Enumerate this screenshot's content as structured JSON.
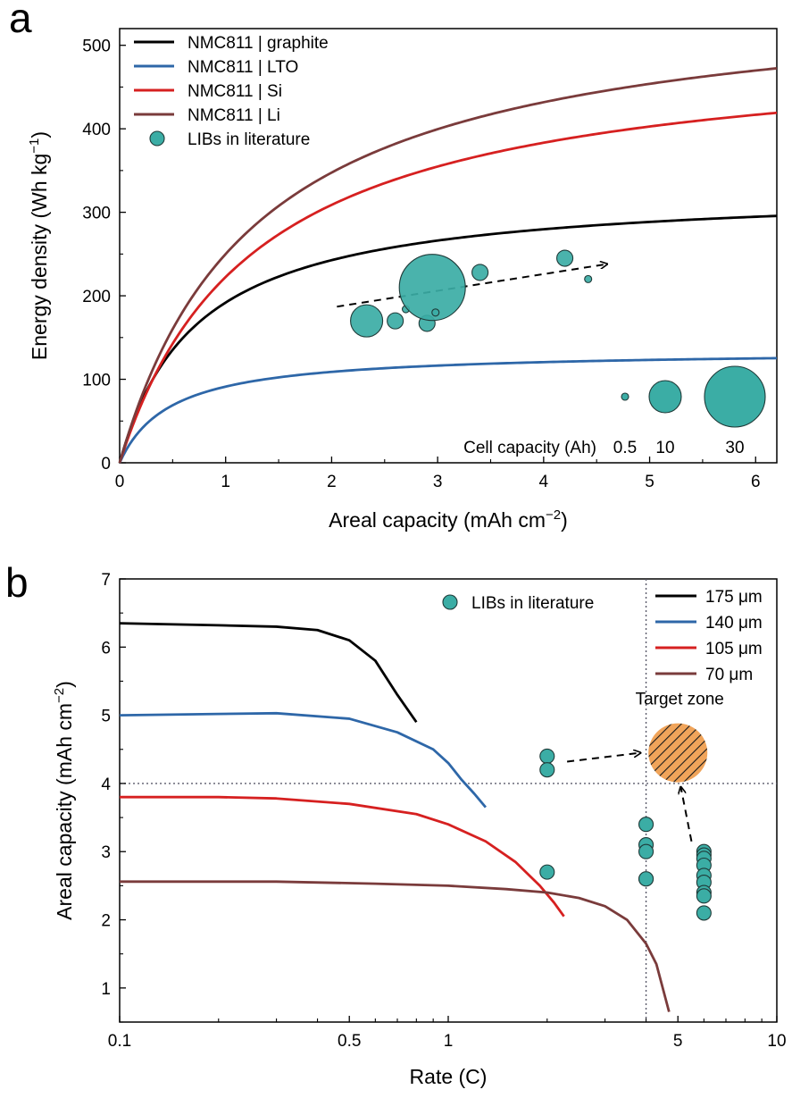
{
  "chart_data": [
    {
      "panel": "a",
      "type": "line",
      "xlabel": "Areal capacity (mAh cm",
      "xlabel_sup": "−2",
      "xlabel_end": ")",
      "ylabel": "Energy density (Wh kg",
      "ylabel_sup": "−1",
      "ylabel_end": ")",
      "xlim": [
        0,
        6.2
      ],
      "ylim": [
        0,
        520
      ],
      "xticks": [
        "0",
        "1",
        "2",
        "3",
        "4",
        "5",
        "6"
      ],
      "yticks": [
        "0",
        "100",
        "200",
        "300",
        "400",
        "500"
      ],
      "grid": false,
      "legend_position": "top-left",
      "series": [
        {
          "name": "NMC811 | graphite",
          "color": "#000000",
          "emax": 330,
          "k": 0.72
        },
        {
          "name": "NMC811 | LTO",
          "color": "#2e67a8",
          "emax": 135,
          "k": 0.48
        },
        {
          "name": "NMC811 | Si",
          "color": "#d62020",
          "emax": 505,
          "k": 1.27
        },
        {
          "name": "NMC811 | Li",
          "color": "#7a3b3b",
          "emax": 570,
          "k": 1.28
        }
      ],
      "scatter": {
        "name": "LIBs in literature",
        "color": "#3bada5",
        "points": [
          {
            "x": 2.33,
            "y": 170,
            "size": "medium"
          },
          {
            "x": 2.6,
            "y": 170,
            "size": "small"
          },
          {
            "x": 2.7,
            "y": 184,
            "size": "tiny"
          },
          {
            "x": 2.9,
            "y": 167,
            "size": "small"
          },
          {
            "x": 2.95,
            "y": 210,
            "size": "large"
          },
          {
            "x": 2.98,
            "y": 180,
            "size": "tiny"
          },
          {
            "x": 3.4,
            "y": 228,
            "size": "small"
          },
          {
            "x": 4.2,
            "y": 245,
            "size": "small"
          },
          {
            "x": 4.42,
            "y": 220,
            "size": "tiny"
          }
        ]
      },
      "trend_arrow": {
        "from": [
          2.05,
          187
        ],
        "to": [
          4.6,
          238
        ]
      },
      "size_legend": {
        "label": "Cell capacity (Ah)",
        "values": [
          "0.5",
          "10",
          "30"
        ]
      }
    },
    {
      "panel": "b",
      "type": "line",
      "xscale": "log",
      "xlabel": "Rate (C)",
      "ylabel": "Areal capacity (mAh cm",
      "ylabel_sup": "−2",
      "ylabel_end": ")",
      "xlim": [
        0.1,
        10
      ],
      "ylim": [
        0.5,
        7
      ],
      "xticks": [
        "0.1",
        "0.5",
        "1",
        "5",
        "10"
      ],
      "yticks": [
        "1",
        "2",
        "3",
        "4",
        "5",
        "6",
        "7"
      ],
      "grid": false,
      "legend_position": "top-right",
      "series": [
        {
          "name": "175 μm",
          "color": "#000000",
          "x": [
            0.1,
            0.2,
            0.3,
            0.4,
            0.5,
            0.6,
            0.7,
            0.8
          ],
          "y": [
            6.35,
            6.32,
            6.3,
            6.25,
            6.1,
            5.8,
            5.3,
            4.9
          ]
        },
        {
          "name": "140 μm",
          "color": "#2e67a8",
          "x": [
            0.1,
            0.2,
            0.3,
            0.5,
            0.7,
            0.9,
            1.0,
            1.1,
            1.2,
            1.3
          ],
          "y": [
            5.0,
            5.02,
            5.03,
            4.95,
            4.75,
            4.5,
            4.3,
            4.05,
            3.85,
            3.65
          ]
        },
        {
          "name": "105 μm",
          "color": "#d62020",
          "x": [
            0.1,
            0.2,
            0.3,
            0.5,
            0.8,
            1.0,
            1.3,
            1.6,
            1.9,
            2.1,
            2.25
          ],
          "y": [
            3.8,
            3.8,
            3.78,
            3.7,
            3.55,
            3.4,
            3.15,
            2.85,
            2.5,
            2.25,
            2.05
          ]
        },
        {
          "name": " 70 μm",
          "color": "#7a3b3b",
          "x": [
            0.1,
            0.3,
            0.6,
            1.0,
            1.5,
            2.0,
            2.5,
            3.0,
            3.5,
            4.0,
            4.3,
            4.7
          ],
          "y": [
            2.56,
            2.56,
            2.53,
            2.5,
            2.45,
            2.4,
            2.32,
            2.2,
            2.0,
            1.65,
            1.35,
            0.65
          ]
        }
      ],
      "scatter": {
        "name": "LIBs in literature",
        "color": "#3bada5",
        "points": [
          {
            "x": 2.0,
            "y": 4.4
          },
          {
            "x": 2.0,
            "y": 4.2
          },
          {
            "x": 2.0,
            "y": 2.7
          },
          {
            "x": 4.0,
            "y": 3.4
          },
          {
            "x": 4.0,
            "y": 3.1
          },
          {
            "x": 4.0,
            "y": 3.0
          },
          {
            "x": 4.0,
            "y": 2.6
          },
          {
            "x": 4.0,
            "y": 2.6
          },
          {
            "x": 6.0,
            "y": 3.0
          },
          {
            "x": 6.0,
            "y": 2.95
          },
          {
            "x": 6.0,
            "y": 2.9
          },
          {
            "x": 6.0,
            "y": 2.8
          },
          {
            "x": 6.0,
            "y": 2.65
          },
          {
            "x": 6.0,
            "y": 2.55
          },
          {
            "x": 6.0,
            "y": 2.4
          },
          {
            "x": 6.0,
            "y": 2.35
          },
          {
            "x": 6.0,
            "y": 2.1
          }
        ]
      },
      "reference_lines": {
        "x": 4.0,
        "y": 4.0
      },
      "target_zone": {
        "label": "Target zone",
        "x": 5.0,
        "y": 4.45,
        "fill": "#f0a45a",
        "hatch": "#1a1a1a"
      },
      "arrows": [
        {
          "from": [
            2.3,
            4.32
          ],
          "to": [
            3.85,
            4.45
          ]
        },
        {
          "from": [
            5.5,
            3.15
          ],
          "to": [
            5.1,
            3.95
          ]
        }
      ]
    }
  ]
}
